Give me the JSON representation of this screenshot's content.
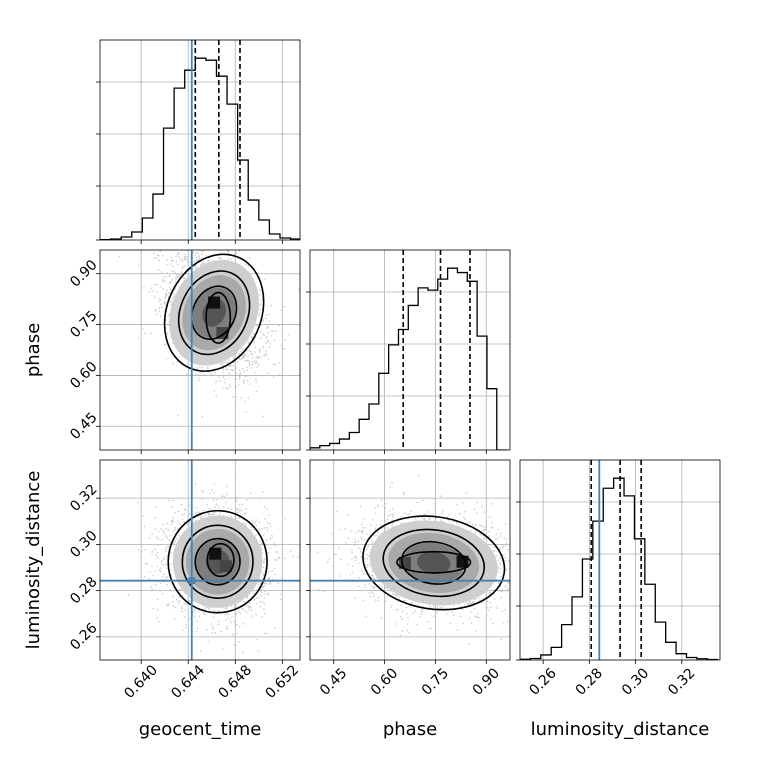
{
  "parameters": [
    {
      "name": "geocent_time",
      "label": "geocent_time",
      "truth": 0.6443,
      "range": [
        0.6365,
        0.6535
      ],
      "ticks": [
        0.64,
        0.644,
        0.648,
        0.652
      ],
      "tick_labels": [
        "0.640",
        "0.644",
        "0.648",
        "0.652"
      ],
      "quantiles": [
        0.6446,
        0.6466,
        0.6484
      ]
    },
    {
      "name": "phase",
      "label": "phase",
      "truth": null,
      "range": [
        0.38,
        0.97
      ],
      "ticks": [
        0.45,
        0.6,
        0.75,
        0.9
      ],
      "tick_labels": [
        "0.45",
        "0.60",
        "0.75",
        "0.90"
      ],
      "quantiles": [
        0.655,
        0.765,
        0.852
      ]
    },
    {
      "name": "luminosity_distance",
      "label": "luminosity_distance",
      "truth": 0.2843,
      "range": [
        0.25,
        0.3365
      ],
      "ticks": [
        0.26,
        0.28,
        0.3,
        0.32
      ],
      "tick_labels": [
        "0.26",
        "0.28",
        "0.30",
        "0.32"
      ],
      "quantiles": [
        0.2808,
        0.2933,
        0.3024
      ]
    }
  ],
  "chart_data": {
    "type": "corner",
    "title": "",
    "grid": true,
    "truth_color": "#4682b4",
    "contour_color": "#000000",
    "scatter_color": "#bbbbbb",
    "marginals": [
      {
        "parameter": "geocent_time",
        "bin_edges": [
          0.6365,
          0.6374,
          0.6383,
          0.6392,
          0.6401,
          0.641,
          0.6419,
          0.6428,
          0.6437,
          0.6446,
          0.6455,
          0.6464,
          0.6473,
          0.6482,
          0.6491,
          0.65,
          0.6509,
          0.6518,
          0.6527,
          0.6536
        ],
        "counts": [
          0.2,
          0.5,
          1.5,
          4,
          11,
          23,
          56,
          76,
          85,
          91,
          90,
          82,
          68,
          40,
          20,
          10,
          3,
          1,
          0.5
        ]
      },
      {
        "parameter": "phase",
        "bin_edges": [
          0.38,
          0.409,
          0.438,
          0.467,
          0.496,
          0.525,
          0.554,
          0.583,
          0.612,
          0.641,
          0.67,
          0.699,
          0.728,
          0.757,
          0.786,
          0.815,
          0.844,
          0.873,
          0.902,
          0.931,
          0.96
        ],
        "counts": [
          1,
          2,
          3,
          5,
          8,
          14,
          21,
          35,
          48,
          55,
          66,
          74,
          73,
          78,
          83,
          81,
          77,
          52,
          28,
          0
        ]
      },
      {
        "parameter": "luminosity_distance",
        "bin_edges": [
          0.25,
          0.2545,
          0.259,
          0.2635,
          0.268,
          0.2725,
          0.277,
          0.2815,
          0.286,
          0.2905,
          0.295,
          0.2995,
          0.304,
          0.3085,
          0.313,
          0.3175,
          0.322,
          0.3265,
          0.331,
          0.3355
        ],
        "counts": [
          0.3,
          0.6,
          2,
          5,
          14,
          25,
          40,
          55,
          68,
          72,
          65,
          48,
          30,
          15,
          7,
          2.5,
          1,
          0.5,
          0.2
        ]
      }
    ],
    "pairs": [
      {
        "x": "geocent_time",
        "y": "phase",
        "mean": [
          0.6462,
          0.785
        ],
        "sd": [
          0.0019,
          0.085
        ],
        "corr": -0.35,
        "peak": [
          0.6462,
          0.815
        ],
        "secondary_peak": [
          0.6469,
          0.725
        ]
      },
      {
        "x": "geocent_time",
        "y": "luminosity_distance",
        "mean": [
          0.6465,
          0.2925
        ],
        "sd": [
          0.002,
          0.0105
        ],
        "corr": -0.05,
        "peak": [
          0.6463,
          0.296
        ],
        "secondary_peak": [
          0.6472,
          0.2905
        ]
      },
      {
        "x": "phase",
        "y": "luminosity_distance",
        "mean": [
          0.745,
          0.292
        ],
        "sd": [
          0.1,
          0.0095
        ],
        "corr": -0.12,
        "peak": [
          0.83,
          0.2925
        ],
        "secondary_peak": [
          0.66,
          0.292
        ]
      }
    ]
  }
}
